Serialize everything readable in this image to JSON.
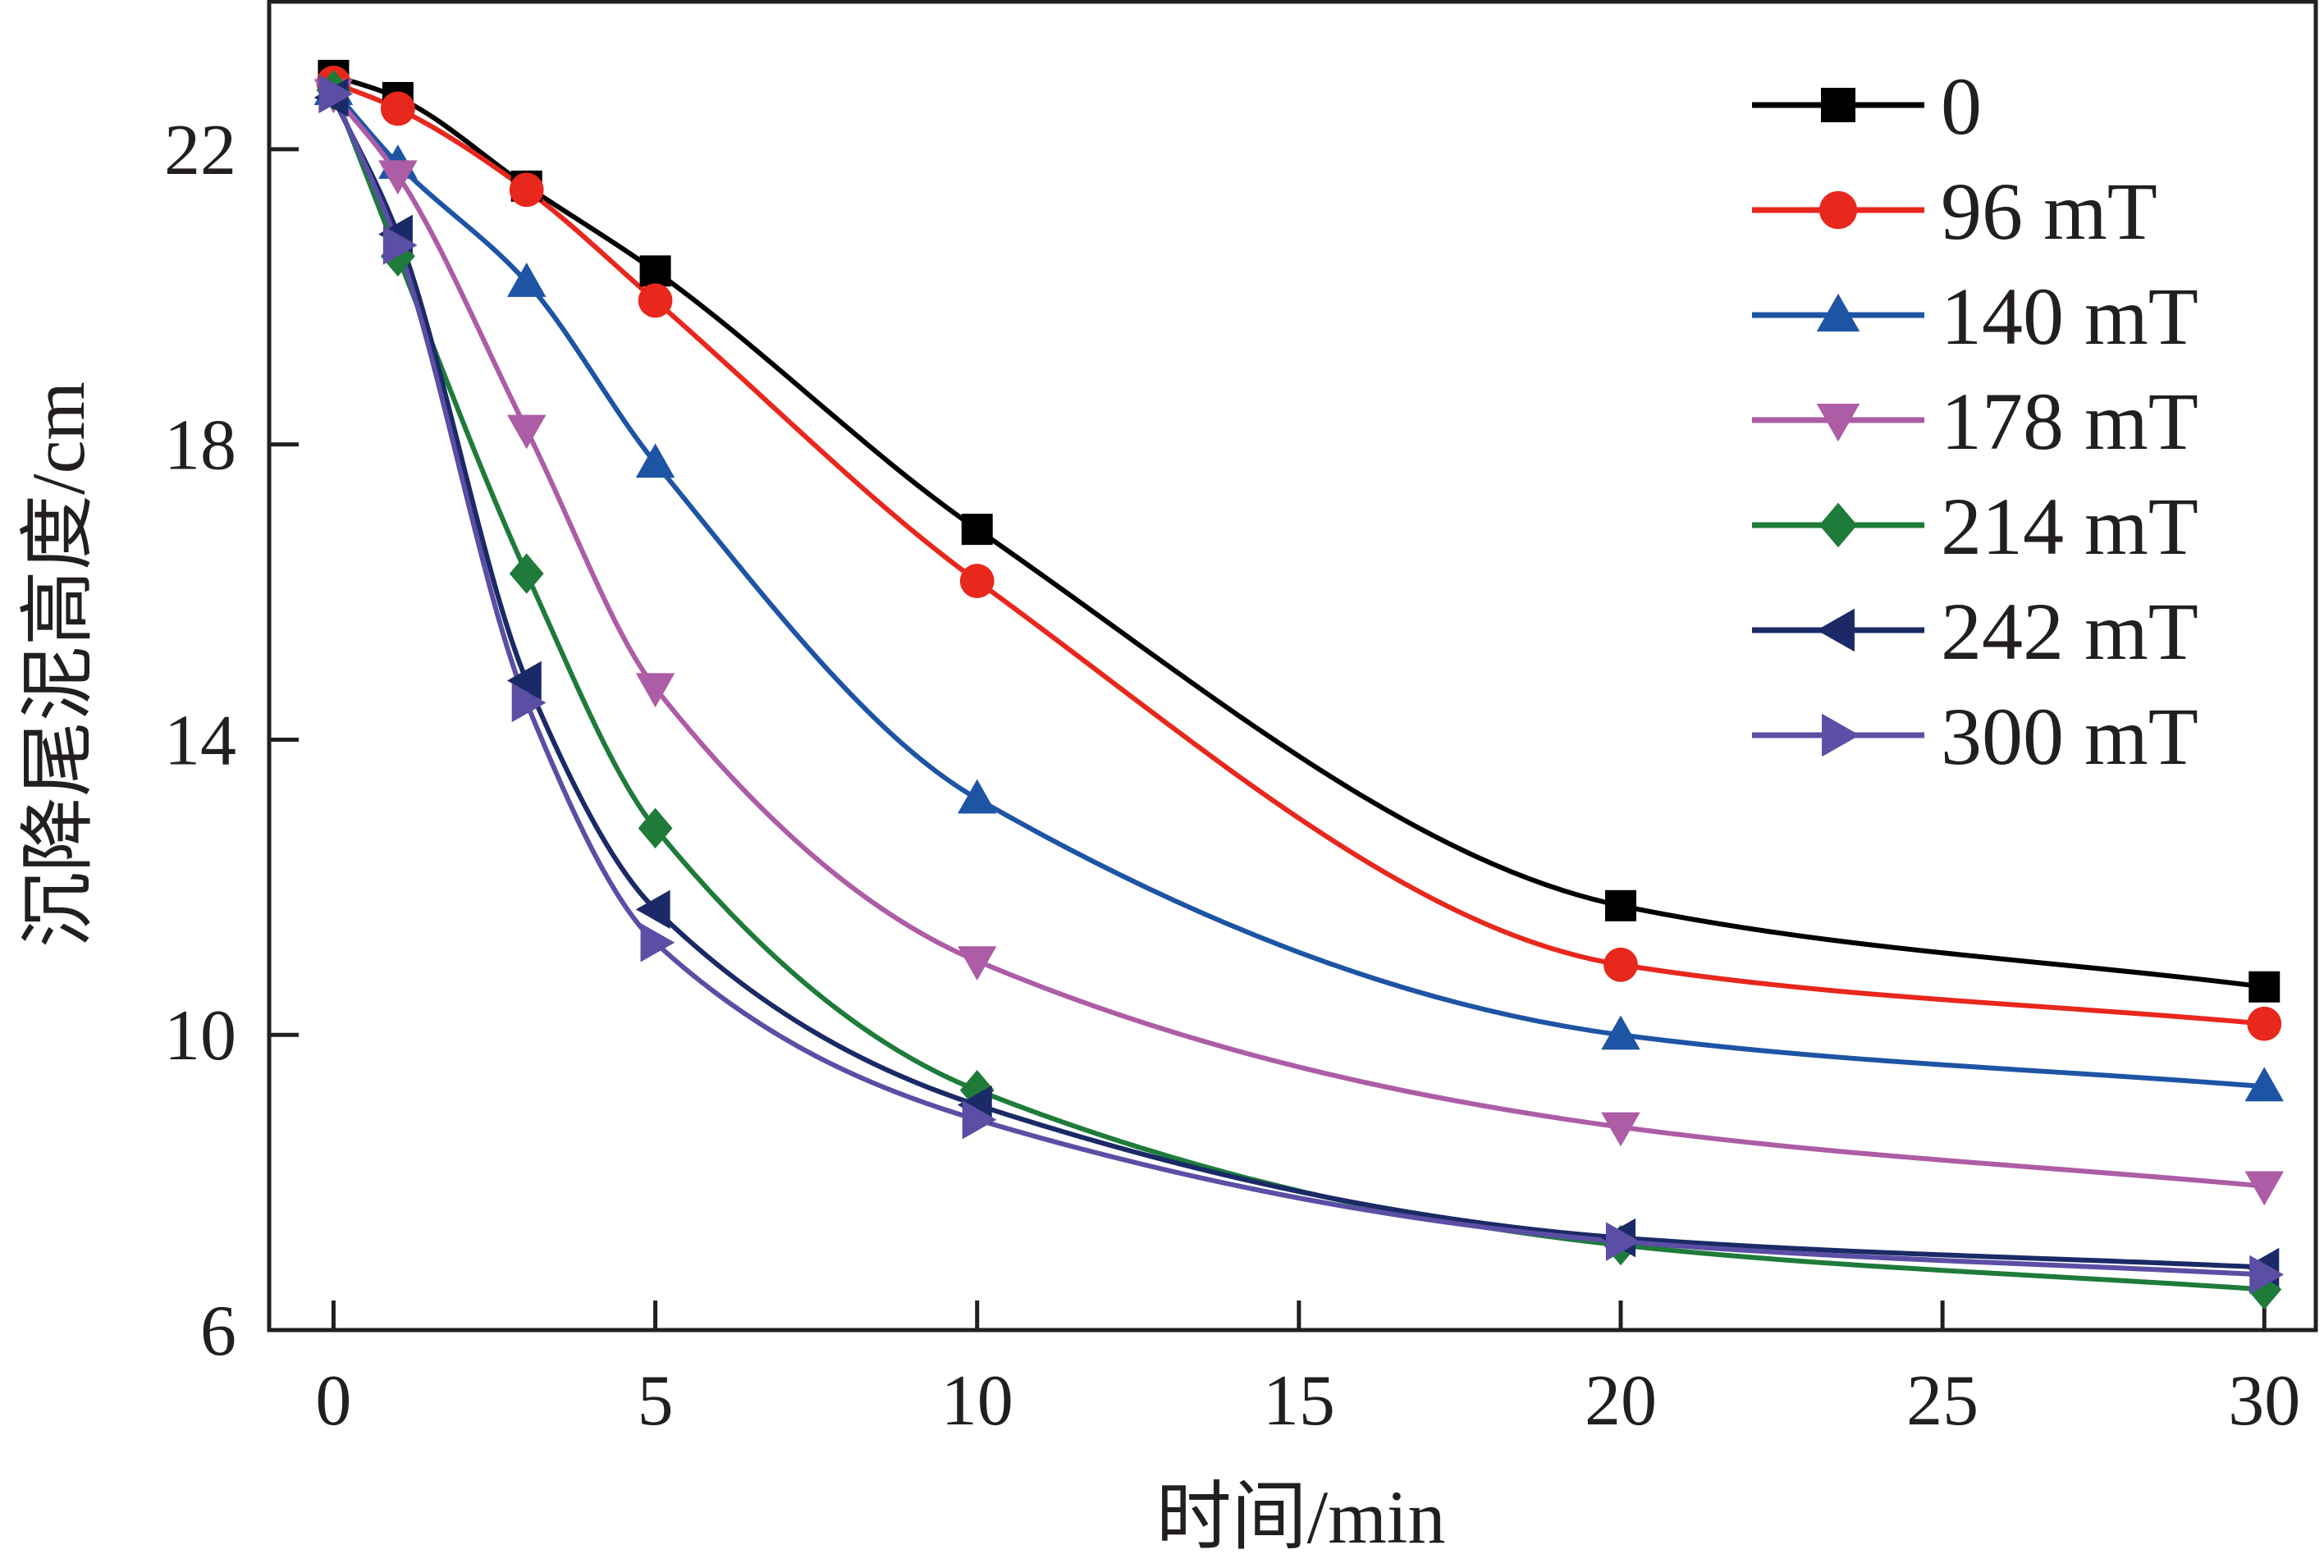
{
  "chart_data": {
    "type": "line",
    "title": "",
    "xlabel": "时间/min",
    "ylabel": "沉降尾泥高度/cm",
    "xlim": [
      -1,
      30.8
    ],
    "ylim": [
      6,
      24
    ],
    "xticks": [
      0,
      5,
      10,
      15,
      20,
      25,
      30
    ],
    "yticks": [
      6,
      10,
      14,
      18,
      22
    ],
    "legend_position": "top-right",
    "x": [
      0,
      1,
      3,
      5,
      10,
      20,
      30
    ],
    "series": [
      {
        "name": "0",
        "color": "#000000",
        "marker": "square",
        "values": [
          23.0,
          22.7,
          21.5,
          20.35,
          16.85,
          11.75,
          10.65
        ]
      },
      {
        "name": "96 mT",
        "color": "#e8271d",
        "marker": "circle",
        "values": [
          22.9,
          22.55,
          21.45,
          19.95,
          16.15,
          10.95,
          10.15
        ]
      },
      {
        "name": "140 mT",
        "color": "#1e54a4",
        "marker": "triangle-up",
        "values": [
          22.8,
          21.8,
          20.2,
          17.75,
          13.2,
          10.0,
          9.3
        ]
      },
      {
        "name": "178 mT",
        "color": "#ad5ca6",
        "marker": "triangle-down",
        "values": [
          22.75,
          21.65,
          18.2,
          14.7,
          11.0,
          8.75,
          7.95
        ]
      },
      {
        "name": "214 mT",
        "color": "#1f7b3a",
        "marker": "diamond",
        "values": [
          22.8,
          20.55,
          16.25,
          12.8,
          9.25,
          7.15,
          6.55
        ]
      },
      {
        "name": "242 mT",
        "color": "#1b2a66",
        "marker": "triangle-left",
        "values": [
          22.7,
          20.85,
          14.8,
          11.7,
          9.05,
          7.25,
          6.85
        ]
      },
      {
        "name": "300 mT",
        "color": "#5b4ea5",
        "marker": "triangle-right",
        "values": [
          22.75,
          20.7,
          14.5,
          11.25,
          8.85,
          7.2,
          6.75
        ]
      }
    ]
  }
}
